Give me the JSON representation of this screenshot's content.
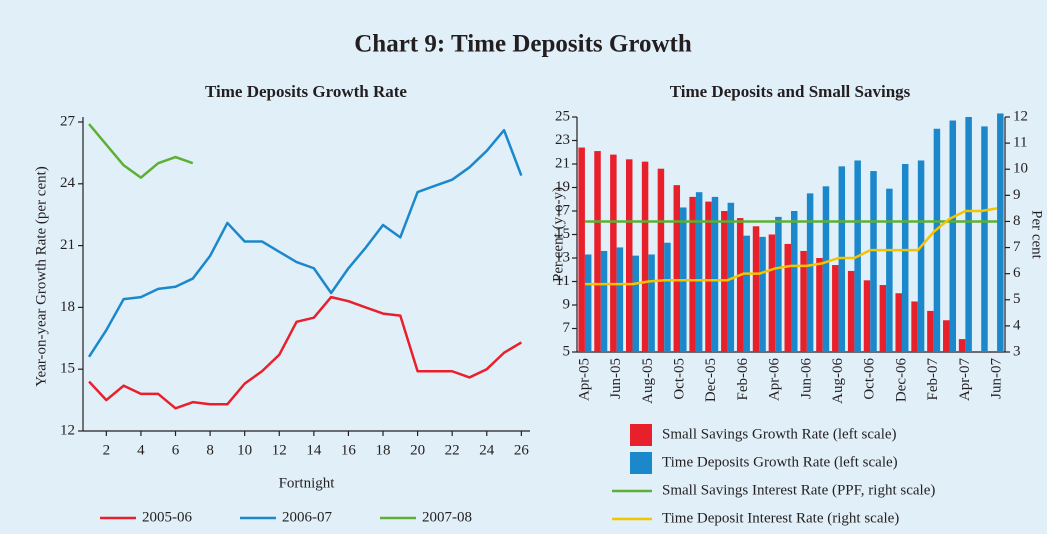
{
  "title": "Chart 9: Time Deposits Growth",
  "chart_data": [
    {
      "type": "line",
      "title": "Time Deposits Growth Rate",
      "x_label": "Fortnight",
      "y_label": "Year-on-year Growth Rate (per cent)",
      "x": [
        1,
        2,
        3,
        4,
        5,
        6,
        7,
        8,
        9,
        10,
        11,
        12,
        13,
        14,
        15,
        16,
        17,
        18,
        19,
        20,
        21,
        22,
        23,
        24,
        25,
        26
      ],
      "xlim": [
        0.65,
        26.5
      ],
      "xticks": [
        2,
        4,
        6,
        8,
        10,
        12,
        14,
        16,
        18,
        20,
        22,
        24,
        26
      ],
      "ylim": [
        12,
        27
      ],
      "yticks": [
        12,
        15,
        18,
        21,
        24,
        27
      ],
      "legend": "bottom",
      "series": [
        {
          "name": "2005-06",
          "color": "#e8202c",
          "values": [
            14.4,
            13.5,
            14.2,
            13.8,
            13.8,
            13.1,
            13.4,
            13.3,
            13.3,
            14.3,
            14.9,
            15.7,
            17.3,
            17.5,
            18.5,
            18.3,
            18.0,
            17.7,
            17.6,
            14.9,
            14.9,
            14.9,
            14.6,
            15.0,
            15.8,
            16.3
          ]
        },
        {
          "name": "2006-07",
          "color": "#1b88cb",
          "values": [
            15.6,
            16.9,
            18.4,
            18.5,
            18.9,
            19.0,
            19.4,
            20.5,
            22.1,
            21.2,
            21.2,
            20.7,
            20.2,
            19.9,
            18.7,
            19.9,
            20.9,
            22.0,
            21.4,
            23.6,
            23.9,
            24.2,
            24.8,
            25.6,
            26.6,
            24.4
          ]
        },
        {
          "name": "2007-08",
          "color": "#5cb034",
          "values": [
            26.9,
            25.9,
            24.9,
            24.3,
            25.0,
            25.3,
            25.0,
            null,
            null,
            null,
            null,
            null,
            null,
            null,
            null,
            null,
            null,
            null,
            null,
            null,
            null,
            null,
            null,
            null,
            null,
            null
          ]
        }
      ]
    },
    {
      "type": "bar",
      "title": "Time Deposits and Small Savings",
      "y_label": "Per cent (y-o-y)",
      "y2_label": "Per cent",
      "categories": [
        "Apr-05",
        null,
        "Jun-05",
        null,
        "Aug-05",
        null,
        "Oct-05",
        null,
        "Dec-05",
        null,
        "Feb-06",
        null,
        "Apr-06",
        null,
        "Jun-06",
        null,
        "Aug-06",
        null,
        "Oct-06",
        null,
        "Dec-06",
        null,
        "Feb-07",
        null,
        "Apr-07",
        null,
        "Jun-07"
      ],
      "ylim": [
        5,
        25
      ],
      "yticks": [
        5,
        7,
        9,
        11,
        13,
        15,
        17,
        19,
        21,
        23,
        25
      ],
      "y2lim": [
        3,
        12
      ],
      "y2ticks": [
        3,
        4,
        5,
        6,
        7,
        8,
        9,
        10,
        11,
        12
      ],
      "legend": "bottom",
      "series": [
        {
          "name": "Small Savings Growth Rate (left scale)",
          "type": "bar",
          "color": "#e8202c",
          "values": [
            22.4,
            22.1,
            21.8,
            21.4,
            21.2,
            20.6,
            19.2,
            18.2,
            17.8,
            17.0,
            16.4,
            15.7,
            15.0,
            14.2,
            13.6,
            13.0,
            12.4,
            11.9,
            11.1,
            10.7,
            10.0,
            9.3,
            8.5,
            7.7,
            6.1,
            null,
            null
          ]
        },
        {
          "name": "Time Deposits Growth Rate (left scale)",
          "type": "bar",
          "color": "#1b88cb",
          "values": [
            13.3,
            13.6,
            13.9,
            13.2,
            13.3,
            14.3,
            17.3,
            18.6,
            18.2,
            17.7,
            14.9,
            14.8,
            16.5,
            17.0,
            18.5,
            19.1,
            20.8,
            21.3,
            20.4,
            18.9,
            21.0,
            21.3,
            24.0,
            24.7,
            25.0,
            24.2,
            25.3
          ]
        },
        {
          "name": "Small Savings Interest Rate (PPF, right scale)",
          "type": "line",
          "axis": "y2",
          "color": "#5cb034",
          "values": [
            8,
            8,
            8,
            8,
            8,
            8,
            8,
            8,
            8,
            8,
            8,
            8,
            8,
            8,
            8,
            8,
            8,
            8,
            8,
            8,
            8,
            8,
            8,
            8,
            8,
            8,
            8
          ]
        },
        {
          "name": "Time Deposit Interest Rate (right scale)",
          "type": "line",
          "axis": "y2",
          "color": "#f5c400",
          "values": [
            5.6,
            5.6,
            5.6,
            5.6,
            5.7,
            5.75,
            5.75,
            5.75,
            5.75,
            5.75,
            6.0,
            6.0,
            6.2,
            6.3,
            6.3,
            6.4,
            6.6,
            6.6,
            6.9,
            6.9,
            6.9,
            6.9,
            7.6,
            8.1,
            8.4,
            8.4,
            8.5
          ]
        }
      ]
    }
  ]
}
